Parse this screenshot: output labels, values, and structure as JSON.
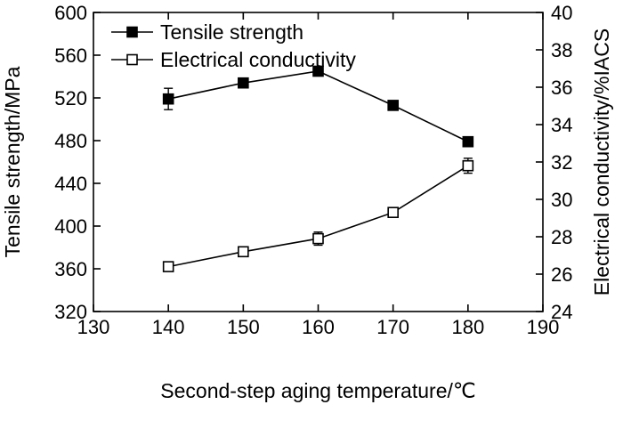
{
  "chart_data": {
    "type": "line",
    "title": "",
    "xlabel": "Second-step aging temperature/℃",
    "ylabel_left": "Tensile strength/MPa",
    "ylabel_right": "Electrical conductivity/%IACS",
    "xlim": [
      130,
      190
    ],
    "ylim_left": [
      320,
      600
    ],
    "ylim_right": [
      24,
      40
    ],
    "x_ticks": [
      "130",
      "140",
      "150",
      "160",
      "170",
      "180",
      "190"
    ],
    "y_left_ticks": [
      "320",
      "360",
      "400",
      "440",
      "480",
      "520",
      "560",
      "600"
    ],
    "y_right_ticks": [
      "24",
      "26",
      "28",
      "30",
      "32",
      "34",
      "36",
      "38",
      "40"
    ],
    "grid": false,
    "legend_position": "top-left",
    "series": [
      {
        "name": "Tensile strength",
        "axis": "left",
        "marker": "filled-square",
        "x": [
          140,
          150,
          160,
          170,
          180
        ],
        "values": [
          519,
          534,
          545,
          513,
          479
        ],
        "errors": [
          10,
          3,
          2,
          3,
          2
        ]
      },
      {
        "name": "Electrical conductivity",
        "axis": "right",
        "marker": "open-square",
        "x": [
          140,
          150,
          160,
          170,
          180
        ],
        "values": [
          26.4,
          27.2,
          27.9,
          29.3,
          31.8
        ],
        "errors": [
          0.1,
          0.25,
          0.35,
          0.25,
          0.4
        ]
      }
    ]
  }
}
